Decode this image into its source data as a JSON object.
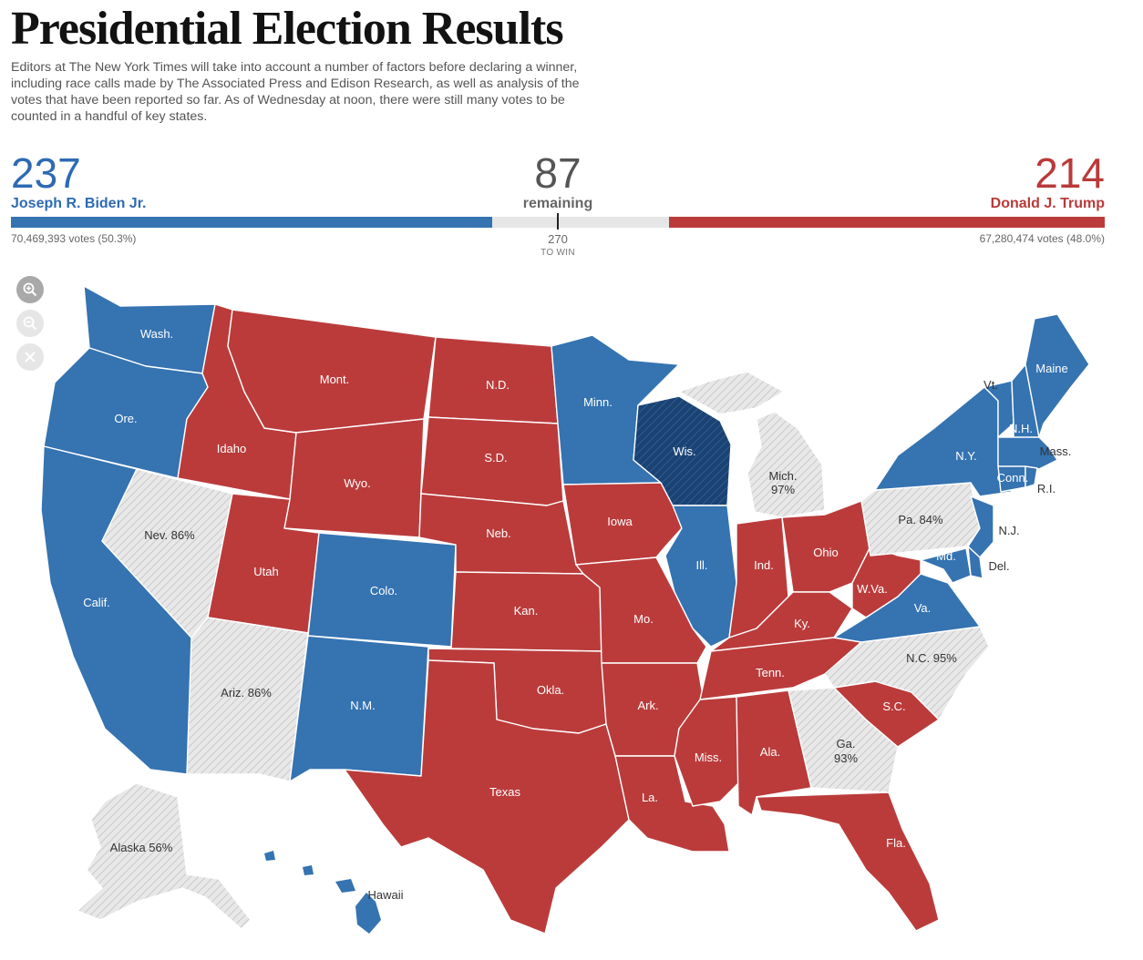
{
  "header": {
    "title": "Presidential Election Results",
    "intro": "Editors at The New York Times will take into account a number of factors before declaring a winner, including race calls made by The Associated Press and Edison Research, as well as analysis of the votes that have been reported so far. As of Wednesday at noon, there were still many votes to be counted in a handful of key states."
  },
  "tally": {
    "biden": {
      "electoral_votes": "237",
      "name": "Joseph R. Biden Jr.",
      "votes": "70,469,393 votes (50.3%)",
      "color": "#3573b1"
    },
    "trump": {
      "electoral_votes": "214",
      "name": "Donald J. Trump",
      "votes": "67,280,474 votes (48.0%)",
      "color": "#bb3b3b"
    },
    "remaining": {
      "electoral_votes": "87",
      "label": "remaining",
      "color": "#e6e6e6"
    },
    "to_win": {
      "number": "270",
      "label": "TO WIN"
    }
  },
  "map_controls": [
    {
      "name": "zoom-in-icon"
    },
    {
      "name": "zoom-out-icon"
    },
    {
      "name": "close-icon"
    }
  ],
  "map": {
    "colors": {
      "dem": "#3573b1",
      "dem_flip": "#1a4373",
      "rep": "#bb3b3b",
      "pending": "#e6e6e6"
    },
    "labels": {
      "wa": "Wash.",
      "or": "Ore.",
      "ca": "Calif.",
      "id": "Idaho",
      "mt": "Mont.",
      "wy": "Wyo.",
      "nv": "Nev. 86%",
      "ut": "Utah",
      "co": "Colo.",
      "az": "Ariz. 86%",
      "nm": "N.M.",
      "nd": "N.D.",
      "sd": "S.D.",
      "ne": "Neb.",
      "ks": "Kan.",
      "ok": "Okla.",
      "tx": "Texas",
      "mn": "Minn.",
      "ia": "Iowa",
      "mo": "Mo.",
      "ar": "Ark.",
      "la": "La.",
      "wi": "Wis.",
      "il": "Ill.",
      "mi1": "Mich.",
      "mi2": "97%",
      "in": "Ind.",
      "oh": "Ohio",
      "ky": "Ky.",
      "tn": "Tenn.",
      "ms": "Miss.",
      "al": "Ala.",
      "ga1": "Ga.",
      "ga2": "93%",
      "fl": "Fla.",
      "sc": "S.C.",
      "nc": "N.C. 95%",
      "va": "Va.",
      "wv": "W.Va.",
      "pa": "Pa. 84%",
      "ny": "N.Y.",
      "vt": "Vt.",
      "nh": "N.H.",
      "me": "Maine",
      "ma": "Mass.",
      "ri": "R.I.",
      "ct": "Conn.",
      "nj": "N.J.",
      "de": "Del.",
      "md": "Md.",
      "ak": "Alaska 56%",
      "hi": "Hawaii"
    }
  }
}
